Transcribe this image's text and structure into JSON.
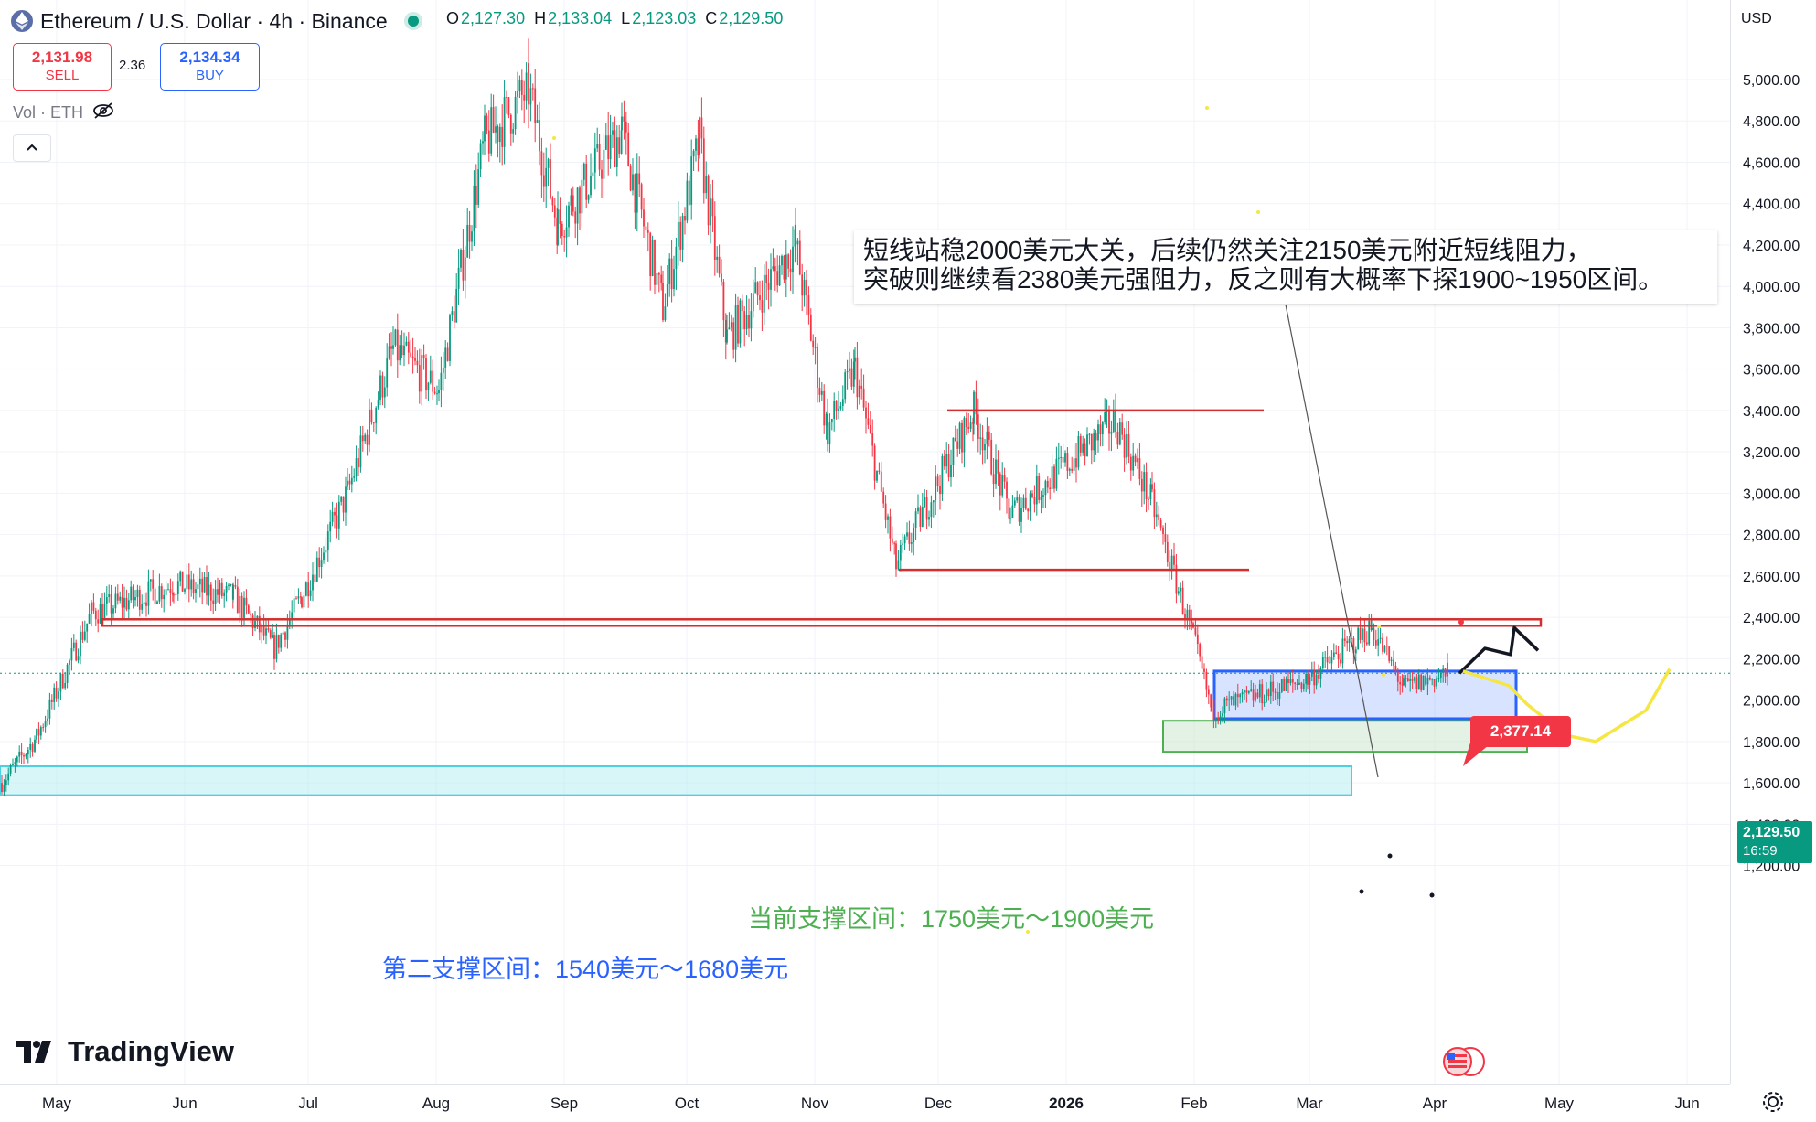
{
  "header": {
    "symbol_title": "Ethereum / U.S. Dollar · 4h · Binance",
    "ohlc": [
      {
        "key": "O",
        "value": "2,127.30"
      },
      {
        "key": "H",
        "value": "2,133.04"
      },
      {
        "key": "L",
        "value": "2,123.03"
      },
      {
        "key": "C",
        "value": "2,129.50"
      }
    ]
  },
  "trade": {
    "sell_price": "2,131.98",
    "sell_label": "SELL",
    "spread": "2.36",
    "buy_price": "2,134.34",
    "buy_label": "BUY"
  },
  "volume_label": "Vol · ETH",
  "currency": "USD",
  "current_price": {
    "value": "2,129.50",
    "countdown": "16:59"
  },
  "callout_price": "2,377.14",
  "annotation": {
    "line1": "短线站稳2000美元大关，后续仍然关注2150美元附近短线阻力，",
    "line2": "突破则继续看2380美元强阻力，反之则有大概率下探1900~1950区间。"
  },
  "zones": {
    "current_support": "当前支撑区间：1750美元～1900美元",
    "second_support": "第二支撑区间：1540美元～1680美元"
  },
  "brand": "TradingView",
  "icons": {
    "eth": "ethereum-logo-icon",
    "hide": "eye-slash-icon",
    "collapse": "chevron-up-icon",
    "settings": "gear-icon",
    "flag": "us-flag-icon"
  },
  "colors": {
    "up": "#089981",
    "down": "#f23645",
    "accent": "#2962ff",
    "resistance": "#d32f2f",
    "forecast_yellow": "#f5e642"
  },
  "chart_data": {
    "type": "candlestick",
    "symbol": "ETHUSD",
    "interval": "4h",
    "ylim": [
      1200,
      5000
    ],
    "y_ticks": [
      5000,
      4800,
      4600,
      4400,
      4200,
      4000,
      3800,
      3600,
      3400,
      3200,
      3000,
      2800,
      2600,
      2400,
      2200,
      2000,
      1800,
      1600,
      1400,
      1200
    ],
    "x_tick_labels": [
      "May",
      "Jun",
      "Jul",
      "Aug",
      "Sep",
      "Oct",
      "Nov",
      "Dec",
      "2026",
      "Feb",
      "Mar",
      "Apr",
      "May",
      "Jun"
    ],
    "path_anchors": [
      {
        "x": "Apr",
        "y": 1600
      },
      {
        "x": "May",
        "y": 1820
      },
      {
        "x": "May",
        "y": 2420
      },
      {
        "x": "Jun",
        "y": 2560
      },
      {
        "x": "Jun",
        "y": 2500
      },
      {
        "x": "Jun",
        "y": 2250
      },
      {
        "x": "Jul",
        "y": 2500
      },
      {
        "x": "Jul",
        "y": 3000
      },
      {
        "x": "Aug",
        "y": 3700
      },
      {
        "x": "Aug",
        "y": 3500
      },
      {
        "x": "Aug",
        "y": 4700
      },
      {
        "x": "Sep",
        "y": 4950
      },
      {
        "x": "Sep",
        "y": 4300
      },
      {
        "x": "Sep",
        "y": 4750
      },
      {
        "x": "Sep",
        "y": 3900
      },
      {
        "x": "Oct",
        "y": 4700
      },
      {
        "x": "Oct",
        "y": 3750
      },
      {
        "x": "Nov",
        "y": 4200
      },
      {
        "x": "Nov",
        "y": 3300
      },
      {
        "x": "Nov",
        "y": 3600
      },
      {
        "x": "Dec",
        "y": 2650
      },
      {
        "x": "Dec",
        "y": 3400
      },
      {
        "x": "Dec",
        "y": 2900
      },
      {
        "x": "2026",
        "y": 3350
      },
      {
        "x": "2026",
        "y": 2950
      },
      {
        "x": "Feb",
        "y": 2300
      },
      {
        "x": "Feb",
        "y": 1950
      },
      {
        "x": "Mar",
        "y": 2100
      },
      {
        "x": "Mar",
        "y": 2350
      },
      {
        "x": "Apr",
        "y": 2060
      },
      {
        "x": "Apr",
        "y": 2129.5
      }
    ],
    "levels": {
      "resistance_2380": 2377.14,
      "range_high": 3400,
      "range_low": 2630,
      "current_box": [
        1910,
        2140
      ],
      "current_support": [
        1750,
        1900
      ],
      "second_support": [
        1540,
        1680
      ]
    },
    "forecast_bull": [
      {
        "x": "Apr",
        "y": 2130
      },
      {
        "x": "Apr",
        "y": 2250
      },
      {
        "x": "Apr",
        "y": 2220
      },
      {
        "x": "May",
        "y": 2350
      },
      {
        "x": "May",
        "y": 2240
      }
    ],
    "forecast_bear": [
      {
        "x": "Apr",
        "y": 2140
      },
      {
        "x": "Apr",
        "y": 2070
      },
      {
        "x": "May",
        "y": 1980
      },
      {
        "x": "May",
        "y": 1830
      },
      {
        "x": "May",
        "y": 1800
      },
      {
        "x": "Jun",
        "y": 1950
      },
      {
        "x": "Jun",
        "y": 2150
      }
    ]
  }
}
